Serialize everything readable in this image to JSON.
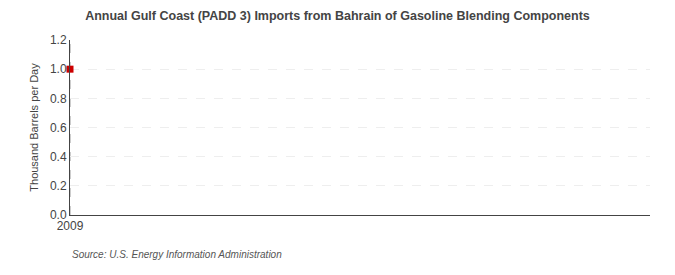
{
  "chart_data": {
    "type": "scatter",
    "title": "Annual Gulf Coast (PADD 3) Imports from Bahrain of Gasoline Blending Components",
    "y_label": "Thousand Barrels per Day",
    "source": "Source: U.S. Energy Information Administration",
    "x": [
      2009
    ],
    "values": [
      1.0
    ],
    "color": "#cc0000",
    "marker": "square",
    "reference_line": 2009,
    "xlim": [
      2009,
      2016
    ],
    "xticks": [
      2009
    ],
    "ylim": [
      0.0,
      1.2
    ],
    "yticks": [
      {
        "value": 0.0,
        "label": "0.0"
      },
      0.2,
      0.4,
      0.6,
      0.8,
      {
        "value": 1.0,
        "label": "1.0"
      },
      1.2
    ],
    "grid": true
  }
}
